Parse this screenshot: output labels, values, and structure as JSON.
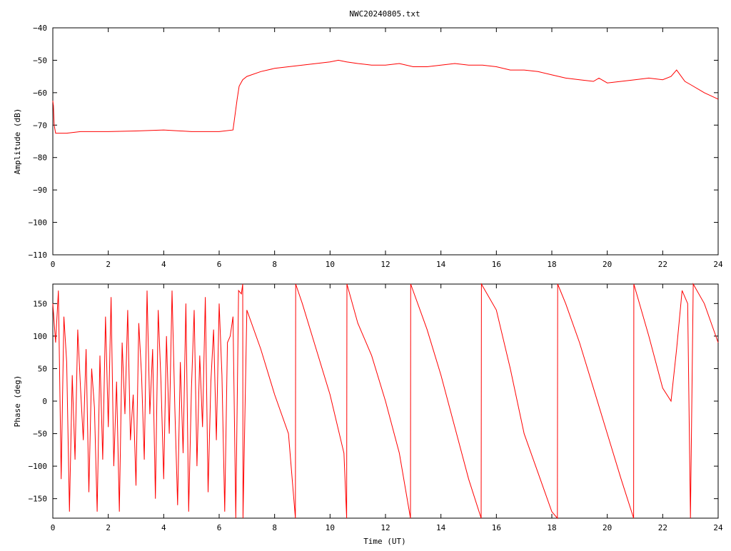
{
  "chart_data": [
    {
      "type": "line",
      "title": "NWC20240805.txt",
      "xlabel": "",
      "ylabel": "Amplitude (dB)",
      "xlim": [
        0,
        24
      ],
      "ylim": [
        -110,
        -40
      ],
      "xticks": [
        0,
        2,
        4,
        6,
        8,
        10,
        12,
        14,
        16,
        18,
        20,
        22,
        24
      ],
      "yticks": [
        -110,
        -100,
        -90,
        -80,
        -70,
        -60,
        -50,
        -40
      ],
      "grid": false,
      "series_color": "#ff0000",
      "series": [
        {
          "x": [
            0.0,
            0.02,
            0.05,
            0.1,
            0.5,
            1.0,
            2.0,
            3.0,
            4.0,
            5.0,
            6.0,
            6.5,
            6.65,
            6.72,
            6.85,
            7.0,
            7.5,
            8.0,
            8.5,
            9.0,
            9.5,
            10.0,
            10.3,
            10.6,
            11.0,
            11.5,
            12.0,
            12.5,
            13.0,
            13.5,
            14.0,
            14.5,
            15.0,
            15.5,
            16.0,
            16.5,
            17.0,
            17.5,
            18.0,
            18.5,
            19.0,
            19.5,
            19.7,
            20.0,
            20.5,
            21.0,
            21.5,
            22.0,
            22.3,
            22.5,
            22.8,
            23.0,
            23.5,
            24.0
          ],
          "y": [
            -62.5,
            -64.0,
            -70.0,
            -72.5,
            -72.5,
            -72.0,
            -72.0,
            -71.8,
            -71.5,
            -72.0,
            -72.0,
            -71.5,
            -62.0,
            -58.0,
            -56.0,
            -55.0,
            -53.5,
            -52.5,
            -52.0,
            -51.5,
            -51.0,
            -50.5,
            -50.0,
            -50.5,
            -51.0,
            -51.5,
            -51.5,
            -51.0,
            -52.0,
            -52.0,
            -51.5,
            -51.0,
            -51.5,
            -51.5,
            -52.0,
            -53.0,
            -53.0,
            -53.5,
            -54.5,
            -55.5,
            -56.0,
            -56.5,
            -55.5,
            -57.0,
            -56.5,
            -56.0,
            -55.5,
            -56.0,
            -55.0,
            -53.0,
            -56.5,
            -57.5,
            -60.0,
            -62.0
          ]
        }
      ]
    },
    {
      "type": "line",
      "title": "",
      "xlabel": "Time (UT)",
      "ylabel": "Phase (deg)",
      "xlim": [
        0,
        24
      ],
      "ylim": [
        -180,
        180
      ],
      "xticks": [
        0,
        2,
        4,
        6,
        8,
        10,
        12,
        14,
        16,
        18,
        20,
        22,
        24
      ],
      "yticks": [
        -150,
        -100,
        -50,
        0,
        50,
        100,
        150
      ],
      "grid": false,
      "series_color": "#ff0000",
      "series": [
        {
          "x": [
            0.0,
            0.1,
            0.2,
            0.3,
            0.4,
            0.5,
            0.6,
            0.7,
            0.8,
            0.9,
            1.0,
            1.1,
            1.2,
            1.3,
            1.4,
            1.5,
            1.6,
            1.7,
            1.8,
            1.9,
            2.0,
            2.1,
            2.2,
            2.3,
            2.4,
            2.5,
            2.6,
            2.7,
            2.8,
            2.9,
            3.0,
            3.1,
            3.2,
            3.3,
            3.4,
            3.5,
            3.6,
            3.7,
            3.8,
            3.9,
            4.0,
            4.1,
            4.2,
            4.3,
            4.4,
            4.5,
            4.6,
            4.7,
            4.8,
            4.9,
            5.0,
            5.1,
            5.2,
            5.3,
            5.4,
            5.5,
            5.6,
            5.7,
            5.8,
            5.9,
            6.0,
            6.1,
            6.2,
            6.3,
            6.4,
            6.5,
            6.6,
            6.7,
            6.8,
            6.85,
            6.86,
            7.0,
            7.5,
            8.0,
            8.5,
            8.75,
            8.76,
            9.0,
            9.5,
            10.0,
            10.5,
            10.6,
            10.61,
            11.0,
            11.5,
            12.0,
            12.5,
            12.9,
            12.91,
            13.5,
            14.0,
            14.5,
            15.0,
            15.45,
            15.46,
            16.0,
            16.5,
            17.0,
            17.5,
            18.0,
            18.2,
            18.21,
            18.5,
            19.0,
            19.5,
            20.0,
            20.5,
            20.95,
            20.96,
            21.5,
            22.0,
            22.3,
            22.5,
            22.7,
            22.9,
            23.0,
            23.1,
            23.5,
            24.0
          ],
          "y": [
            150,
            90,
            170,
            -120,
            130,
            60,
            -170,
            40,
            -90,
            110,
            20,
            -60,
            80,
            -140,
            50,
            -10,
            -170,
            70,
            -90,
            130,
            -40,
            160,
            -100,
            30,
            -170,
            90,
            -20,
            140,
            -60,
            10,
            -130,
            120,
            40,
            -90,
            170,
            -20,
            80,
            -150,
            140,
            30,
            -120,
            100,
            -50,
            170,
            -10,
            -160,
            60,
            -80,
            150,
            -170,
            20,
            140,
            -100,
            70,
            -40,
            160,
            -140,
            30,
            110,
            -60,
            150,
            40,
            -170,
            90,
            100,
            130,
            -180,
            170,
            165,
            180,
            -180,
            140,
            80,
            10,
            -50,
            -180,
            180,
            150,
            80,
            10,
            -80,
            -180,
            180,
            120,
            70,
            0,
            -80,
            -180,
            180,
            110,
            40,
            -40,
            -120,
            -180,
            180,
            140,
            50,
            -50,
            -110,
            -170,
            -180,
            180,
            150,
            90,
            20,
            -50,
            -120,
            -180,
            180,
            100,
            20,
            0,
            80,
            170,
            150,
            -180,
            180,
            150,
            90
          ]
        }
      ]
    }
  ]
}
